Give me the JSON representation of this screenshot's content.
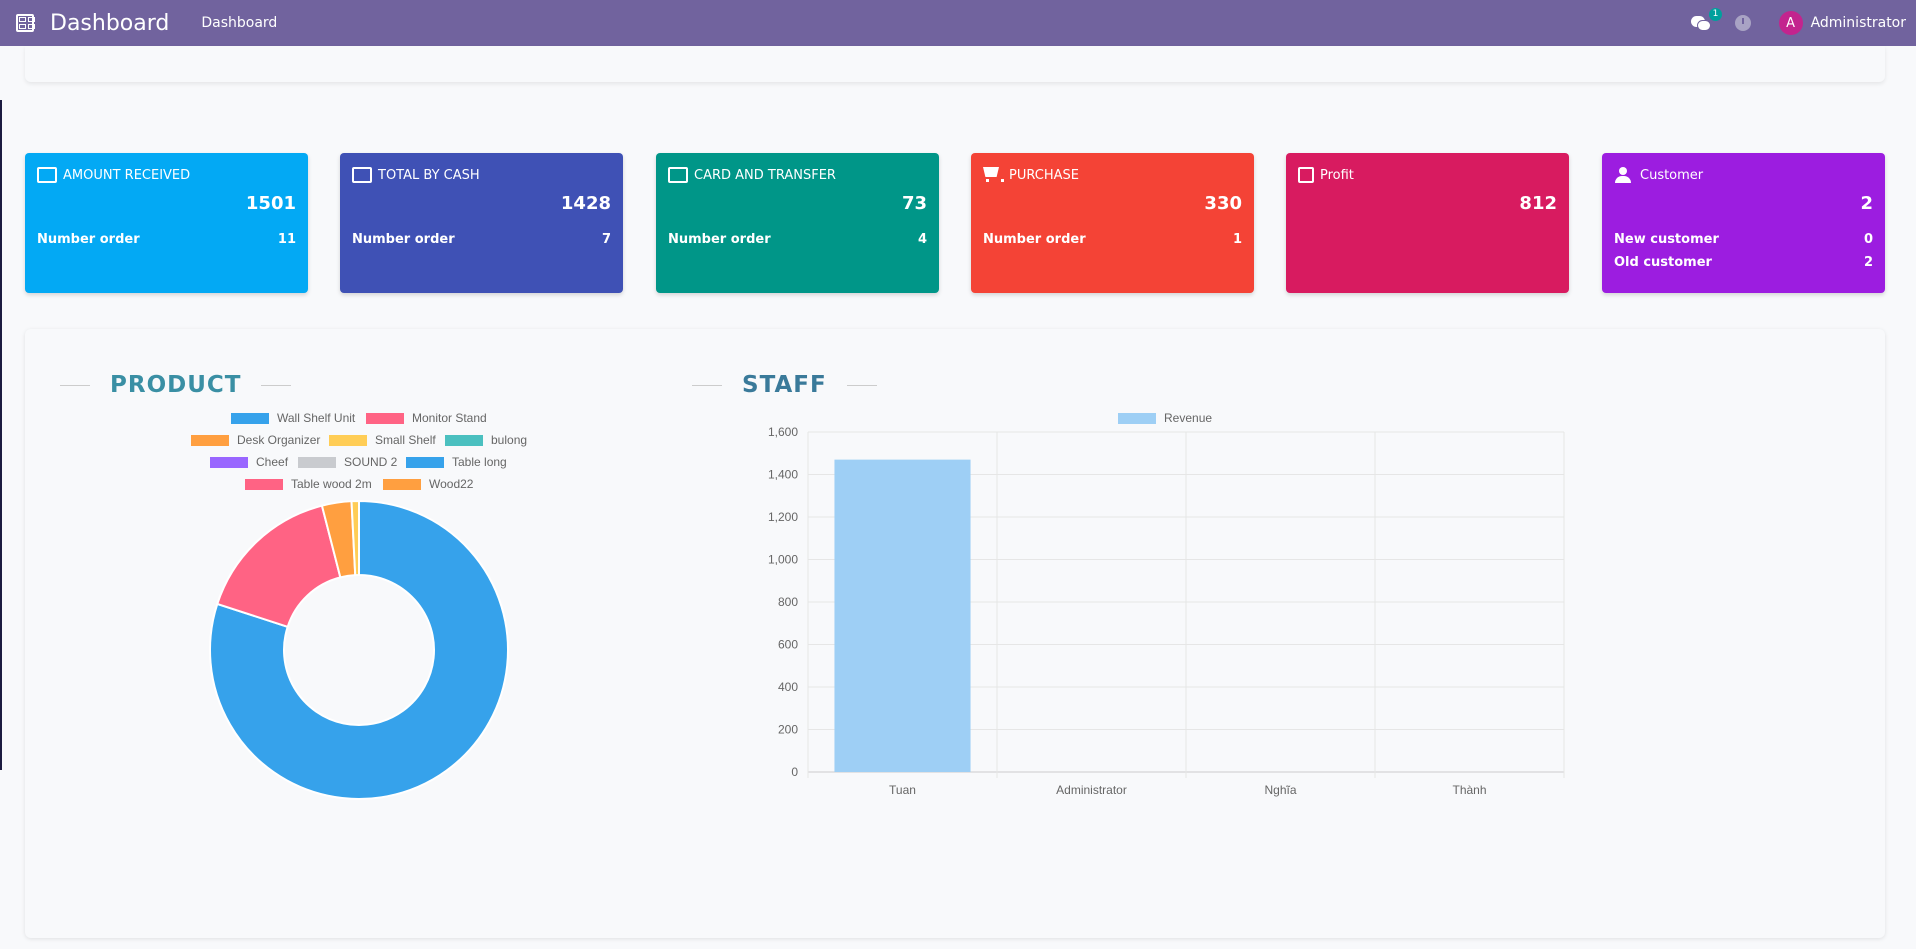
{
  "navbar": {
    "brand": "Dashboard",
    "menu": "Dashboard",
    "chat_badge": "1",
    "avatar_letter": "A",
    "user": "Administrator"
  },
  "cards": [
    {
      "title": "AMOUNT RECEIVED",
      "value": "1501",
      "rows": [
        {
          "label": "Number order",
          "value": "11"
        }
      ],
      "color": "#03a9f4",
      "icon": "money-icon"
    },
    {
      "title": "TOTAL BY CASH",
      "value": "1428",
      "rows": [
        {
          "label": "Number order",
          "value": "7"
        }
      ],
      "color": "#3f51b5",
      "icon": "cash-icon"
    },
    {
      "title": "CARD AND TRANSFER",
      "value": "73",
      "rows": [
        {
          "label": "Number order",
          "value": "4"
        }
      ],
      "color": "#009688",
      "icon": "credit-card-icon"
    },
    {
      "title": "PURCHASE",
      "value": "330",
      "rows": [
        {
          "label": "Number order",
          "value": "1"
        }
      ],
      "color": "#f44336",
      "icon": "cart-icon"
    },
    {
      "title": "Profit",
      "value": "812",
      "rows": [],
      "color": "#d81b60",
      "icon": "bar-chart-icon"
    },
    {
      "title": "Customer",
      "value": "2",
      "rows": [
        {
          "label": "New customer",
          "value": "0"
        },
        {
          "label": "Old customer",
          "value": "2"
        }
      ],
      "color": "#9c1de0",
      "icon": "user-icon"
    }
  ],
  "product": {
    "title": "PRODUCT"
  },
  "staff": {
    "title": "STAFF"
  },
  "chart_data": [
    {
      "type": "pie",
      "variant": "doughnut",
      "labels": [
        "Wall Shelf Unit",
        "Monitor Stand",
        "Desk Organizer",
        "Small Shelf",
        "bulong",
        "Cheef",
        "SOUND 2",
        "Table long",
        "Table wood 2m",
        "Wood22"
      ],
      "values": [
        80,
        16,
        3.2,
        0.8,
        0,
        0,
        0,
        0,
        0,
        0
      ],
      "colors": [
        "#36a2eb",
        "#ff6384",
        "#ff9f40",
        "#ffcd56",
        "#4bc0c0",
        "#9966ff",
        "#c9cbcf",
        "#36a2eb",
        "#ff6384",
        "#ff9f40"
      ],
      "legend": "top"
    },
    {
      "type": "bar",
      "categories": [
        "Tuan",
        "Administrator",
        "Nghĩa",
        "Thành"
      ],
      "series": [
        {
          "name": "Revenue",
          "values": [
            1470,
            0,
            0,
            0
          ],
          "color": "#9ecff5"
        }
      ],
      "ylim": [
        0,
        1600
      ],
      "yticks": [
        "0",
        "200",
        "400",
        "600",
        "800",
        "1,000",
        "1,200",
        "1,400",
        "1,600"
      ],
      "grid": true,
      "legend": "top"
    }
  ]
}
